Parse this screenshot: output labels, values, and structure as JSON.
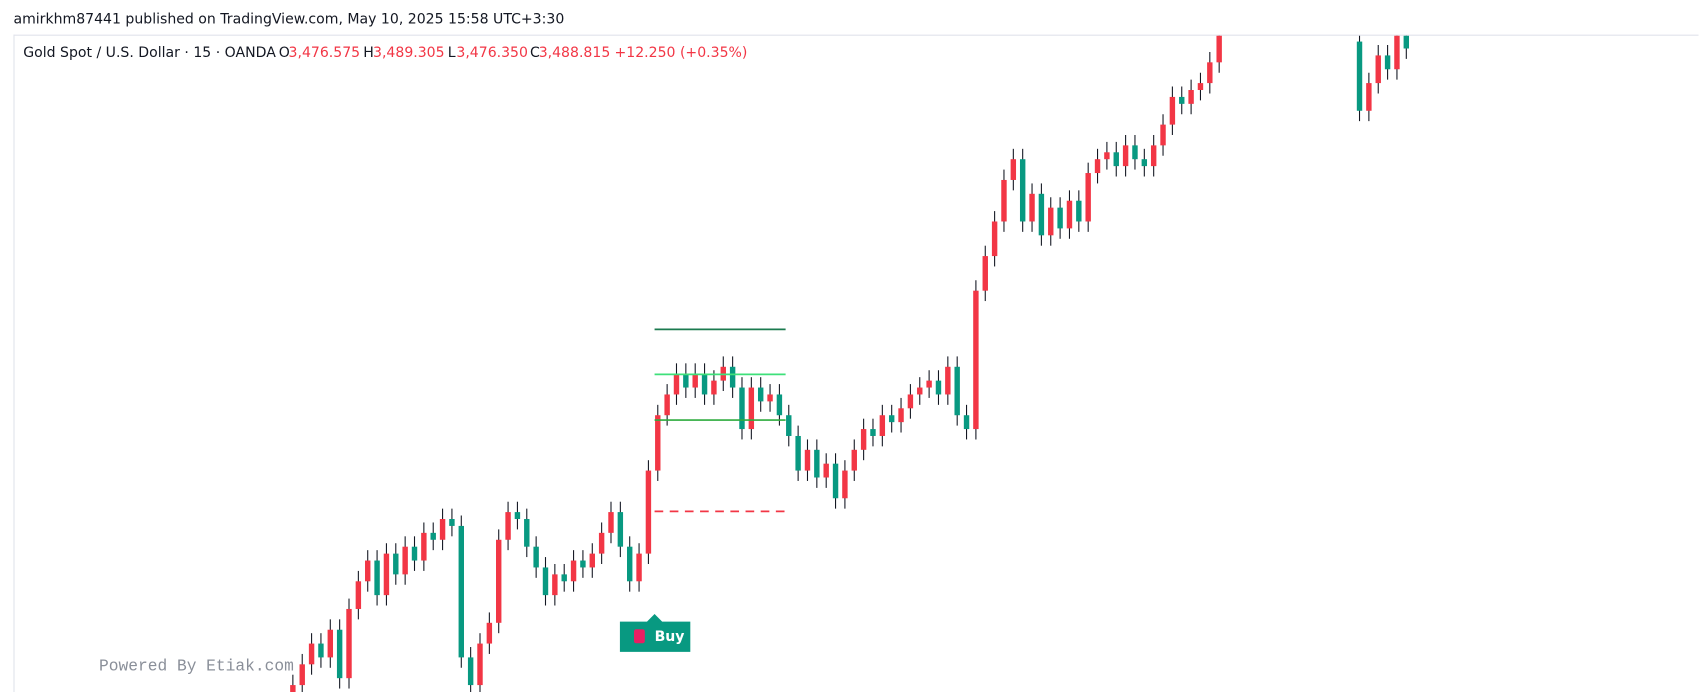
{
  "header": {
    "publisher": "amirkhm87441 published on TradingView.com, May 10, 2025 15:58 UTC+3:30"
  },
  "legend": {
    "symbol": "Gold Spot / U.S. Dollar · 15 · OANDA",
    "o_label": "O",
    "o": "3,476.575",
    "h_label": "H",
    "h": "3,489.305",
    "l_label": "L",
    "l": "3,476.350",
    "c_label": "C",
    "c": "3,488.815",
    "change": "+12.250 (+0.35%)"
  },
  "watermark": "Powered By Etiak.com",
  "signal": {
    "label": "Buy"
  },
  "chart_data": {
    "type": "candlestick",
    "up_color": "#f23645",
    "down_color": "#089981",
    "ylim": [
      3400,
      3495
    ],
    "categories": [
      null,
      null,
      null,
      null,
      null,
      null,
      null,
      null,
      null,
      null,
      null,
      null,
      null,
      null,
      null,
      null,
      null,
      null,
      null,
      null,
      null,
      null,
      null,
      null,
      null,
      null,
      null,
      null,
      null,
      null,
      null,
      null,
      null,
      null,
      null,
      null,
      null,
      null,
      null,
      null,
      null,
      null,
      null,
      null,
      null,
      null,
      null,
      null,
      null,
      null,
      null,
      null,
      null,
      null,
      null,
      null,
      null,
      null,
      null,
      null,
      null,
      null,
      null,
      null,
      null,
      null,
      null,
      null,
      null,
      null,
      null,
      null,
      null,
      null,
      null,
      null,
      null,
      null,
      null,
      null,
      null,
      null,
      null,
      null,
      null,
      null,
      null,
      null,
      null,
      null,
      null,
      null,
      null,
      null,
      null,
      null,
      null,
      null,
      null,
      null,
      null,
      null,
      null,
      null,
      null,
      null,
      null,
      null,
      null,
      null,
      null,
      null,
      null,
      null,
      null,
      null,
      null,
      null,
      null,
      null
    ],
    "open": [
      3398,
      3401,
      3404,
      3407,
      3405,
      3409,
      3402,
      3412,
      3416,
      3419,
      3414,
      3420,
      3417,
      3421,
      3419,
      3423,
      3422,
      3425,
      3424,
      3405,
      3401,
      3407,
      3410,
      3422,
      3426,
      3425,
      3421,
      3418,
      3414,
      3417,
      3416,
      3419,
      3418,
      3420,
      3423,
      3426,
      3421,
      3416,
      3420,
      3432,
      3440,
      3443,
      3446,
      3444,
      3446,
      3443,
      3445,
      3447,
      3444,
      3438,
      3444,
      3442,
      3443,
      3440,
      3437,
      3432,
      3435,
      3431,
      3433,
      3428,
      3432,
      3435,
      3438,
      3437,
      3440,
      3439,
      3441,
      3443,
      3444,
      3445,
      3443,
      3447,
      3440,
      3438,
      3458,
      3463,
      3468,
      3474,
      3477,
      3468,
      3472,
      3466,
      3470,
      3467,
      3471,
      3468,
      3475,
      3477,
      3478,
      3476,
      3479,
      3477,
      3476,
      3479,
      3482,
      3486,
      3485,
      3487,
      3488,
      3491,
      null,
      null,
      null,
      null,
      null,
      null,
      null,
      null,
      null,
      null,
      null,
      null,
      null,
      null,
      3494,
      3484,
      3488,
      3492,
      3490,
      3495
    ],
    "high": [
      3402.5,
      3405.5,
      3408.5,
      3408.5,
      3410.5,
      3410.5,
      3413.5,
      3417.5,
      3420.5,
      3420.5,
      3421.5,
      3421.5,
      3422.5,
      3422.5,
      3424.5,
      3424.5,
      3426.5,
      3426.5,
      3425.5,
      3406.5,
      3408.5,
      3411.5,
      3423.5,
      3427.5,
      3427.5,
      3426.5,
      3422.5,
      3419.5,
      3418.5,
      3418.5,
      3420.5,
      3420.5,
      3421.5,
      3424.5,
      3427.5,
      3427.5,
      3422.5,
      3421.5,
      3433.5,
      3441.5,
      3444.5,
      3447.5,
      3447.5,
      3447.5,
      3447.5,
      3446.5,
      3448.5,
      3448.5,
      3445.5,
      3445.5,
      3445.5,
      3444.5,
      3444.5,
      3441.5,
      3438.5,
      3436.5,
      3436.5,
      3434.5,
      3434.5,
      3433.5,
      3436.5,
      3439.5,
      3439.5,
      3441.5,
      3441.5,
      3442.5,
      3444.5,
      3445.5,
      3446.5,
      3446.5,
      3448.5,
      3448.5,
      3441.5,
      3459.5,
      3464.5,
      3469.5,
      3475.5,
      3478.5,
      3478.5,
      3473.5,
      3473.5,
      3471.5,
      3471.5,
      3472.5,
      3472.5,
      3476.5,
      3478.5,
      3479.5,
      3479.5,
      3480.5,
      3480.5,
      3478.5,
      3480.5,
      3483.5,
      3487.5,
      3487.5,
      3488.5,
      3489.5,
      3492.5,
      3499.5,
      null,
      null,
      null,
      null,
      null,
      null,
      null,
      null,
      null,
      null,
      null,
      null,
      null,
      null,
      3496,
      3489.5,
      3493.5,
      3493.5,
      3496.5,
      3496.5
    ],
    "low": [
      3396.5,
      3399.5,
      3402.5,
      3403.5,
      3403.5,
      3400.5,
      3400.5,
      3410.5,
      3414.5,
      3412.5,
      3412.5,
      3415.5,
      3415.5,
      3417.5,
      3417.5,
      3420.5,
      3420.5,
      3422.5,
      3403.5,
      3399.5,
      3399.5,
      3405.5,
      3408.5,
      3420.5,
      3423.5,
      3419.5,
      3416.5,
      3412.5,
      3412.5,
      3414.5,
      3414.5,
      3416.5,
      3416.5,
      3418.5,
      3421.5,
      3419.5,
      3414.5,
      3414.5,
      3418.5,
      3430.5,
      3438.5,
      3441.5,
      3442.5,
      3442.5,
      3441.5,
      3441.5,
      3443.5,
      3442.5,
      3436.5,
      3436.5,
      3440.5,
      3440.5,
      3438.5,
      3435.5,
      3430.5,
      3430.5,
      3429.5,
      3429.5,
      3426.5,
      3426.5,
      3430.5,
      3433.5,
      3435.5,
      3435.5,
      3437.5,
      3437.5,
      3439.5,
      3441.5,
      3442.5,
      3441.5,
      3441.5,
      3438.5,
      3436.5,
      3436.5,
      3456.5,
      3461.5,
      3466.5,
      3472.5,
      3466.5,
      3466.5,
      3464.5,
      3464.5,
      3465.5,
      3465.5,
      3466.5,
      3466.5,
      3473.5,
      3475.5,
      3474.5,
      3474.5,
      3475.5,
      3474.5,
      3474.5,
      3477.5,
      3480.5,
      3483.5,
      3483.5,
      3485.5,
      3486.5,
      3489.5,
      null,
      null,
      null,
      null,
      null,
      null,
      null,
      null,
      null,
      null,
      null,
      null,
      null,
      null,
      3482.5,
      3482.5,
      3486.5,
      3488.5,
      3488.5,
      3491.5
    ],
    "close": [
      3401,
      3404,
      3407,
      3405,
      3409,
      3402,
      3412,
      3416,
      3419,
      3414,
      3420,
      3417,
      3421,
      3419,
      3423,
      3422,
      3425,
      3424,
      3405,
      3401,
      3407,
      3410,
      3422,
      3426,
      3425,
      3421,
      3418,
      3414,
      3417,
      3416,
      3419,
      3418,
      3420,
      3423,
      3426,
      3421,
      3416,
      3420,
      3432,
      3440,
      3443,
      3446,
      3444,
      3446,
      3443,
      3445,
      3447,
      3444,
      3438,
      3444,
      3442,
      3443,
      3440,
      3437,
      3432,
      3435,
      3431,
      3433,
      3428,
      3432,
      3435,
      3438,
      3437,
      3440,
      3439,
      3441,
      3443,
      3444,
      3445,
      3443,
      3447,
      3440,
      3438,
      3458,
      3463,
      3468,
      3474,
      3477,
      3468,
      3472,
      3466,
      3470,
      3467,
      3471,
      3468,
      3475,
      3477,
      3478,
      3476,
      3479,
      3477,
      3476,
      3479,
      3482,
      3486,
      3485,
      3487,
      3488,
      3491,
      3498,
      null,
      null,
      null,
      null,
      null,
      null,
      null,
      null,
      null,
      null,
      null,
      null,
      null,
      null,
      3484,
      3488,
      3492,
      3490,
      3495,
      3493
    ],
    "levels": [
      {
        "value": 3452.4,
        "color": "#1b7a4f",
        "dashed": false
      },
      {
        "value": 3445.9,
        "color": "#3ee07a",
        "dashed": false
      },
      {
        "value": 3439.3,
        "color": "#2eab3e",
        "dashed": false
      },
      {
        "value": 3426.1,
        "color": "#f23645",
        "dashed": true
      }
    ]
  }
}
